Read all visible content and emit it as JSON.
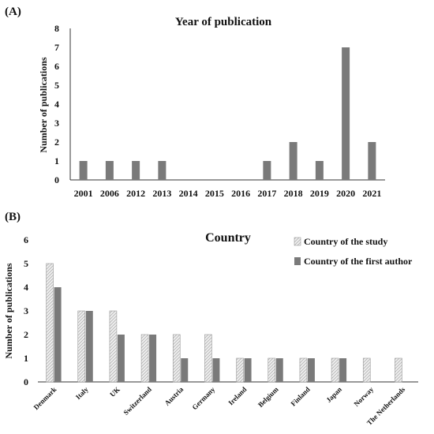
{
  "chart_data": [
    {
      "panel_label": "(A)",
      "type": "bar",
      "title": "Year of publication",
      "xlabel": "",
      "ylabel": "Number of publications",
      "ylim": [
        0,
        8
      ],
      "yticks": [
        0,
        1,
        2,
        3,
        4,
        5,
        6,
        7,
        8
      ],
      "categories": [
        "2001",
        "2006",
        "2012",
        "2013",
        "2014",
        "2015",
        "2016",
        "2017",
        "2018",
        "2019",
        "2020",
        "2021"
      ],
      "values": [
        1,
        1,
        1,
        1,
        0,
        0,
        0,
        1,
        2,
        1,
        7,
        2
      ],
      "color": "#7a7a7a",
      "grid": false,
      "legend": false
    },
    {
      "panel_label": "(B)",
      "type": "bar",
      "title": "Country",
      "xlabel": "",
      "ylabel": "Number of publications",
      "ylim": [
        0,
        6
      ],
      "yticks": [
        0,
        1,
        2,
        3,
        4,
        5,
        6
      ],
      "categories": [
        "Denmark",
        "Italy",
        "UK",
        "Switzerland",
        "Austria",
        "Germany",
        "Ireland",
        "Belgium",
        "Finland",
        "Japan",
        "Norway",
        "The Netherlands"
      ],
      "series": [
        {
          "name": "Country of the study",
          "values": [
            5,
            3,
            3,
            2,
            2,
            2,
            1,
            1,
            1,
            1,
            1,
            1
          ],
          "color": "#e6e6e6",
          "pattern": "hatched"
        },
        {
          "name": "Country of the first author",
          "values": [
            4,
            3,
            2,
            2,
            1,
            1,
            1,
            1,
            1,
            1,
            0,
            0
          ],
          "color": "#7a7a7a",
          "pattern": "solid"
        }
      ],
      "legend": "top-right",
      "grid": false
    }
  ]
}
